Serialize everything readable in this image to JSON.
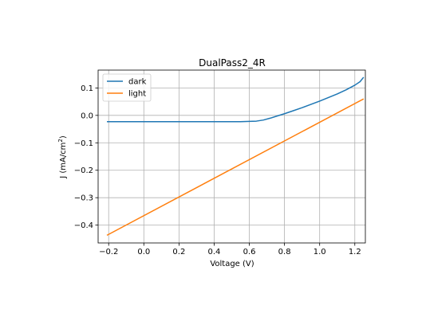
{
  "chart_data": {
    "type": "line",
    "title": "DualPass2_4R",
    "xlabel": "Voltage (V)",
    "ylabel_prefix": "J (mA/cm",
    "ylabel_sup": "2",
    "ylabel_suffix": ")",
    "xlim": [
      -0.26,
      1.26
    ],
    "ylim": [
      -0.465,
      0.165
    ],
    "xticks": [
      -0.2,
      0.0,
      0.2,
      0.4,
      0.6,
      0.8,
      1.0,
      1.2
    ],
    "xtick_labels": [
      "−0.2",
      "0.0",
      "0.2",
      "0.4",
      "0.6",
      "0.8",
      "1.0",
      "1.2"
    ],
    "yticks": [
      0.1,
      0.0,
      -0.1,
      -0.2,
      -0.3,
      -0.4
    ],
    "ytick_labels": [
      "0.1",
      "0.0",
      "−0.1",
      "−0.2",
      "−0.3",
      "−0.4"
    ],
    "grid": true,
    "legend_position": "top-left",
    "series": [
      {
        "name": "dark",
        "color": "#1f77b4",
        "x": [
          -0.21,
          0.0,
          0.2,
          0.4,
          0.55,
          0.6,
          0.64,
          0.68,
          0.72,
          0.76,
          0.8,
          0.85,
          0.9,
          0.95,
          1.0,
          1.05,
          1.1,
          1.15,
          1.2,
          1.23,
          1.25
        ],
        "y": [
          -0.023,
          -0.023,
          -0.023,
          -0.023,
          -0.023,
          -0.022,
          -0.021,
          -0.017,
          -0.01,
          -0.002,
          0.006,
          0.017,
          0.028,
          0.04,
          0.052,
          0.065,
          0.078,
          0.093,
          0.11,
          0.123,
          0.139
        ]
      },
      {
        "name": "light",
        "color": "#ff7f0e",
        "x": [
          -0.21,
          1.25
        ],
        "y": [
          -0.437,
          0.06
        ]
      }
    ]
  }
}
